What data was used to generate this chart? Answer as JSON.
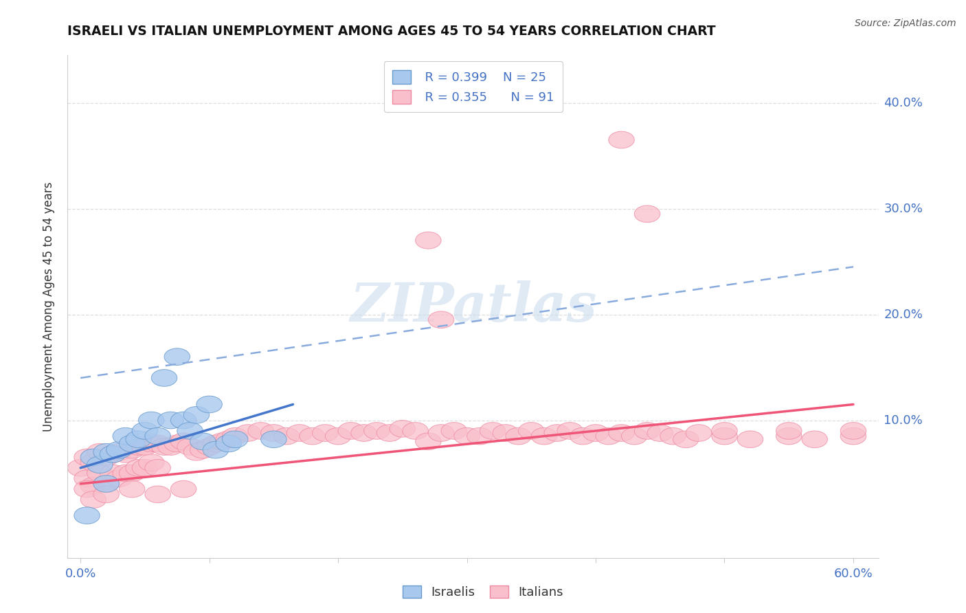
{
  "title": "ISRAELI VS ITALIAN UNEMPLOYMENT AMONG AGES 45 TO 54 YEARS CORRELATION CHART",
  "source": "Source: ZipAtlas.com",
  "ylabel": "Unemployment Among Ages 45 to 54 years",
  "xlim": [
    -0.01,
    0.62
  ],
  "ylim": [
    -0.03,
    0.445
  ],
  "xtick_vals": [
    0.0,
    0.1,
    0.2,
    0.3,
    0.4,
    0.5,
    0.6
  ],
  "ytick_vals": [
    0.1,
    0.2,
    0.3,
    0.4
  ],
  "ytick_labels": [
    "10.0%",
    "20.0%",
    "30.0%",
    "40.0%"
  ],
  "xtick_labels": [
    "0.0%",
    "",
    "",
    "",
    "",
    "",
    "60.0%"
  ],
  "israeli_color": "#A8C8EE",
  "italian_color": "#F9C0CB",
  "israeli_edge_color": "#6699CC",
  "italian_edge_color": "#EE88A0",
  "israeli_line_color": "#4477CC",
  "italian_line_color": "#EE5577",
  "dash_line_color": "#88AADD",
  "legend_R_israeli": "R = 0.399",
  "legend_N_israeli": "N = 25",
  "legend_R_italian": "R = 0.355",
  "legend_N_italian": "N = 91",
  "watermark_text": "ZIPatlas",
  "background_color": "#FFFFFF",
  "grid_color": "#DDDDDD",
  "isr_x": [
    0.005,
    0.01,
    0.015,
    0.02,
    0.02,
    0.025,
    0.03,
    0.035,
    0.04,
    0.045,
    0.05,
    0.055,
    0.06,
    0.065,
    0.07,
    0.075,
    0.08,
    0.085,
    0.09,
    0.095,
    0.1,
    0.105,
    0.115,
    0.12,
    0.15
  ],
  "isr_y": [
    0.01,
    0.065,
    0.058,
    0.07,
    0.04,
    0.068,
    0.072,
    0.085,
    0.078,
    0.082,
    0.09,
    0.1,
    0.085,
    0.14,
    0.1,
    0.16,
    0.1,
    0.09,
    0.105,
    0.08,
    0.115,
    0.072,
    0.078,
    0.082,
    0.082
  ],
  "ita_x": [
    0.0,
    0.005,
    0.005,
    0.01,
    0.01,
    0.015,
    0.015,
    0.02,
    0.02,
    0.025,
    0.025,
    0.03,
    0.03,
    0.035,
    0.035,
    0.04,
    0.04,
    0.045,
    0.045,
    0.05,
    0.05,
    0.055,
    0.055,
    0.06,
    0.06,
    0.065,
    0.07,
    0.075,
    0.08,
    0.085,
    0.09,
    0.095,
    0.1,
    0.105,
    0.11,
    0.115,
    0.12,
    0.13,
    0.14,
    0.15,
    0.16,
    0.17,
    0.18,
    0.19,
    0.2,
    0.21,
    0.22,
    0.23,
    0.24,
    0.25,
    0.26,
    0.27,
    0.28,
    0.29,
    0.3,
    0.31,
    0.32,
    0.33,
    0.34,
    0.35,
    0.36,
    0.37,
    0.38,
    0.39,
    0.4,
    0.41,
    0.42,
    0.43,
    0.44,
    0.45,
    0.46,
    0.47,
    0.48,
    0.5,
    0.52,
    0.55,
    0.57,
    0.6,
    0.27,
    0.28,
    0.42,
    0.44,
    0.5,
    0.55,
    0.6,
    0.005,
    0.01,
    0.02,
    0.04,
    0.06,
    0.08
  ],
  "ita_y": [
    0.055,
    0.065,
    0.045,
    0.06,
    0.038,
    0.07,
    0.05,
    0.065,
    0.04,
    0.068,
    0.05,
    0.07,
    0.045,
    0.068,
    0.05,
    0.072,
    0.05,
    0.075,
    0.055,
    0.075,
    0.055,
    0.078,
    0.06,
    0.078,
    0.055,
    0.075,
    0.075,
    0.078,
    0.08,
    0.075,
    0.07,
    0.072,
    0.075,
    0.078,
    0.08,
    0.082,
    0.085,
    0.088,
    0.09,
    0.088,
    0.085,
    0.088,
    0.085,
    0.088,
    0.085,
    0.09,
    0.088,
    0.09,
    0.088,
    0.092,
    0.09,
    0.08,
    0.088,
    0.09,
    0.085,
    0.085,
    0.09,
    0.088,
    0.085,
    0.09,
    0.085,
    0.088,
    0.09,
    0.085,
    0.088,
    0.085,
    0.088,
    0.085,
    0.09,
    0.088,
    0.085,
    0.082,
    0.088,
    0.085,
    0.082,
    0.085,
    0.082,
    0.085,
    0.27,
    0.195,
    0.365,
    0.295,
    0.09,
    0.09,
    0.09,
    0.035,
    0.025,
    0.03,
    0.035,
    0.03,
    0.035
  ],
  "isr_trend_x": [
    0.0,
    0.165
  ],
  "isr_trend_y": [
    0.055,
    0.115
  ],
  "ita_trend_x": [
    0.0,
    0.6
  ],
  "ita_trend_y": [
    0.04,
    0.115
  ],
  "dash_line_x": [
    0.0,
    0.6
  ],
  "dash_line_y": [
    0.14,
    0.245
  ]
}
